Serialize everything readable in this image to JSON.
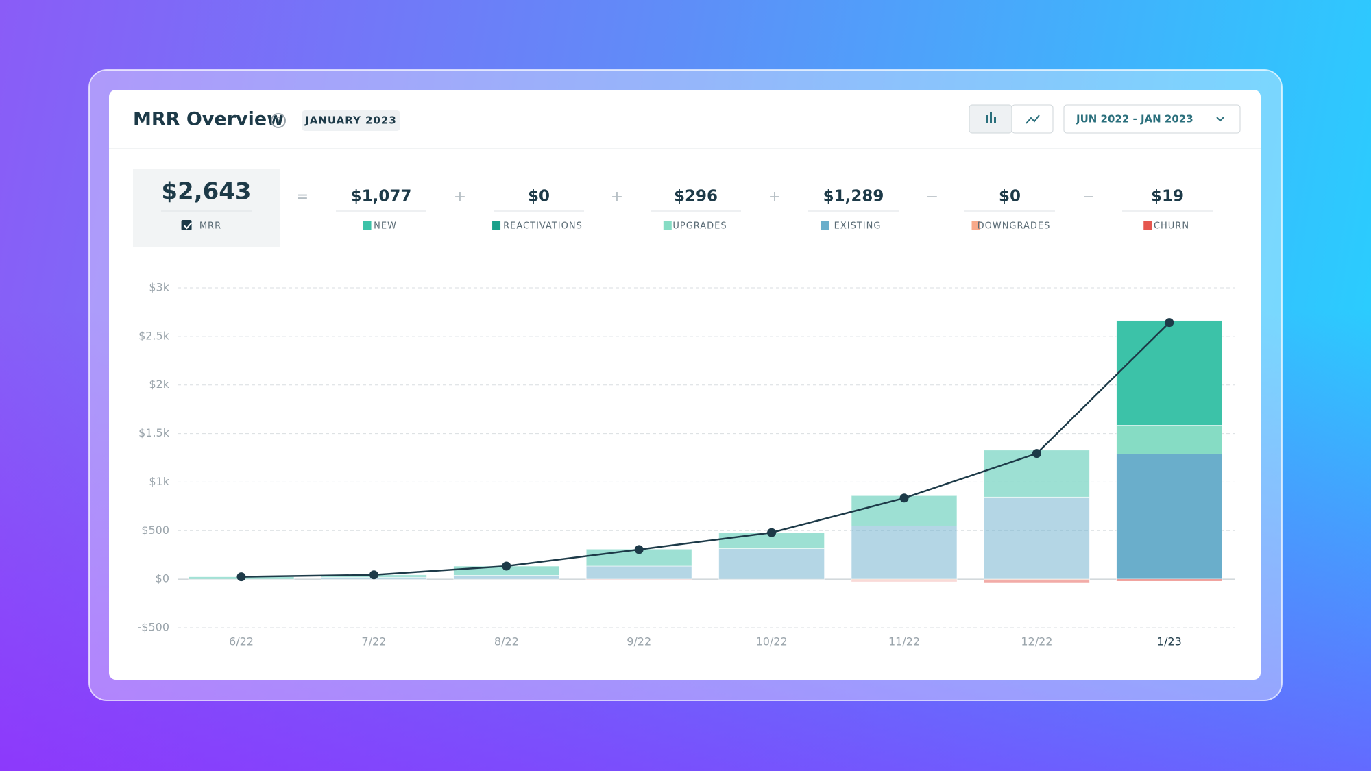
{
  "header": {
    "title": "MRR Overview",
    "badge": "JANUARY 2023",
    "date_range": "JUN 2022 - JAN 2023"
  },
  "chart_data": {
    "type": "bar",
    "stacked": true,
    "categories": [
      "6/22",
      "7/22",
      "8/22",
      "9/22",
      "10/22",
      "11/22",
      "12/22",
      "1/23"
    ],
    "operators": [
      "=",
      "+",
      "+",
      "+",
      "−",
      "−"
    ],
    "series": [
      {
        "name": "MRR",
        "type": "line",
        "color": "#1d3a48",
        "values": [
          25,
          45,
          135,
          305,
          480,
          835,
          1295,
          2643
        ],
        "current_label": "$2,643"
      },
      {
        "name": "NEW",
        "color": "#3cc2a8",
        "values": [
          25,
          25,
          95,
          175,
          165,
          312,
          485,
          1077
        ],
        "current_label": "$1,077"
      },
      {
        "name": "REACTIVATIONS",
        "color": "#1aa08a",
        "values": [
          0,
          0,
          0,
          0,
          0,
          0,
          0,
          0
        ],
        "current_label": "$0"
      },
      {
        "name": "UPGRADES",
        "color": "#86dcc4",
        "values": [
          0,
          0,
          0,
          0,
          0,
          0,
          0,
          296
        ],
        "current_label": "$296"
      },
      {
        "name": "EXISTING",
        "color": "#6aaecb",
        "values": [
          0,
          20,
          40,
          135,
          315,
          548,
          845,
          1289
        ],
        "current_label": "$1,289"
      },
      {
        "name": "DOWNGRADES",
        "color": "#f8a98a",
        "values": [
          0,
          0,
          0,
          0,
          0,
          -15,
          -10,
          0
        ],
        "current_label": "$0"
      },
      {
        "name": "CHURN",
        "color": "#e5574f",
        "values": [
          0,
          0,
          0,
          -5,
          0,
          -10,
          -25,
          -19
        ],
        "current_label": "$19"
      }
    ],
    "ylim": [
      -500,
      3000
    ],
    "yticks": [
      {
        "value": -500,
        "label": "-$500"
      },
      {
        "value": 0,
        "label": "$0"
      },
      {
        "value": 500,
        "label": "$500"
      },
      {
        "value": 1000,
        "label": "$1k"
      },
      {
        "value": 1500,
        "label": "$1.5k"
      },
      {
        "value": 2000,
        "label": "$2k"
      },
      {
        "value": 2500,
        "label": "$2.5k"
      },
      {
        "value": 3000,
        "label": "$3k"
      }
    ],
    "grid": true
  }
}
